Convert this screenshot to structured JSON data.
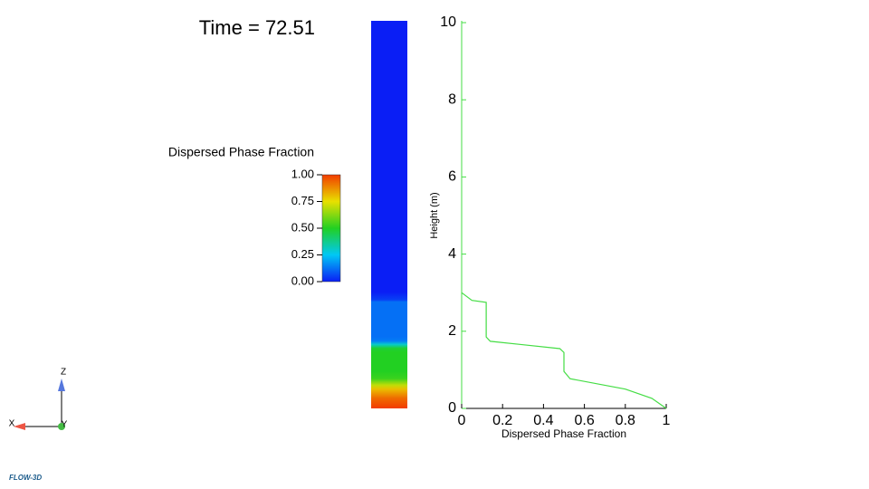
{
  "chart_data": {
    "type": "line",
    "title": "Time = 72.51",
    "xlabel": "Dispersed Phase Fraction",
    "ylabel": "Height (m)",
    "x": [
      0,
      0.05,
      0.12,
      0.12,
      0.14,
      0.3,
      0.48,
      0.5,
      0.5,
      0.53,
      0.7,
      0.8,
      0.93,
      1
    ],
    "series": [
      {
        "color": "#44dd44",
        "values": [
          3.0,
          2.8,
          2.75,
          1.85,
          1.74,
          1.65,
          1.55,
          1.45,
          0.96,
          0.77,
          0.6,
          0.5,
          0.26,
          0
        ]
      }
    ],
    "xlim": [
      0,
      1
    ],
    "ylim": [
      0,
      10
    ],
    "xticks": [
      0,
      0.2,
      0.4,
      0.6,
      0.8,
      1
    ],
    "yticks": [
      0,
      2,
      4,
      6,
      8,
      10
    ],
    "colorbar": {
      "label": "Dispersed Phase Fraction",
      "ticks": [
        {
          "value": 0,
          "label": "0.00"
        },
        {
          "value": 0.25,
          "label": "0.25"
        },
        {
          "value": 0.5,
          "label": "0.50"
        },
        {
          "value": 0.75,
          "label": "0.75"
        },
        {
          "value": 1,
          "label": "1.00"
        }
      ],
      "colormap": [
        "#0a1ef5",
        "#00c8f5",
        "#22d022",
        "#e8e000",
        "#f23c00"
      ]
    }
  },
  "triad": {
    "x": "X",
    "y": "Y",
    "z": "Z"
  },
  "logo": "FLOW-3D"
}
